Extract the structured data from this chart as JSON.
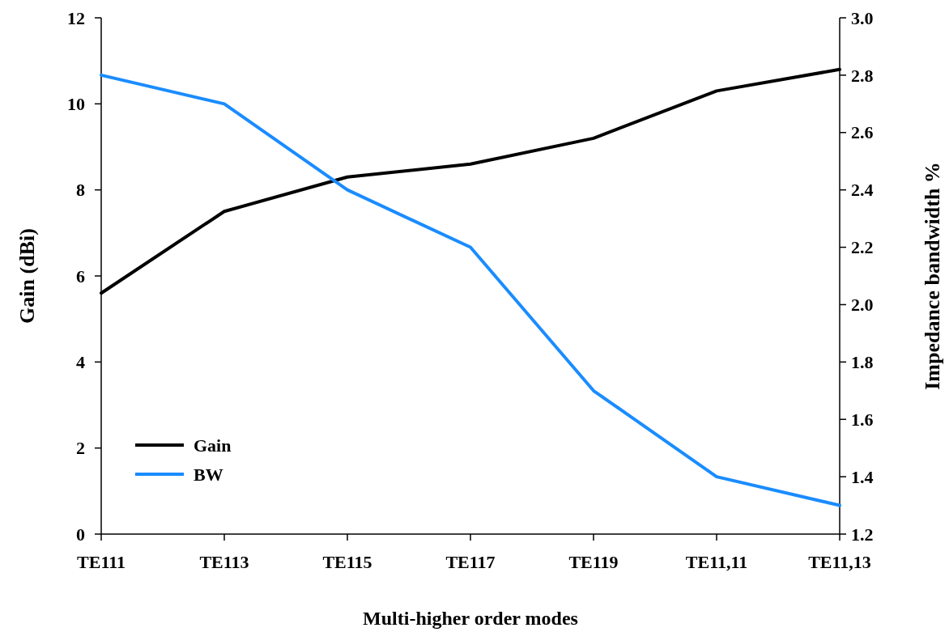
{
  "chart_data": {
    "type": "line",
    "xlabel": "Multi-higher order modes",
    "ylabel": "Gain (dBi)",
    "y2label": "Impedance bandwidth %",
    "categories": [
      "TE111",
      "TE113",
      "TE115",
      "TE117",
      "TE119",
      "TE11,11",
      "TE11,13"
    ],
    "series": [
      {
        "name": "Gain",
        "color": "#000000",
        "values": [
          5.6,
          7.5,
          8.3,
          8.6,
          9.2,
          10.3,
          10.8
        ]
      },
      {
        "name": "BW",
        "color": "#1a8cff",
        "axis": "y2",
        "values": [
          2.8,
          2.7,
          2.4,
          2.2,
          1.7,
          1.4,
          1.3
        ]
      }
    ],
    "ylim": [
      0,
      12
    ],
    "yticks": [
      0,
      2,
      4,
      6,
      8,
      10,
      12
    ],
    "y2lim": [
      1.2,
      3.0
    ],
    "y2ticks": [
      1.2,
      1.4,
      1.6,
      1.8,
      {
        "value": 2,
        "label": "2.0"
      },
      2.2,
      2.4,
      2.6,
      2.8,
      {
        "value": 3,
        "label": "3.0"
      }
    ],
    "grid": false,
    "legend": "bottom left",
    "marker": "none",
    "line_style": "solid"
  }
}
